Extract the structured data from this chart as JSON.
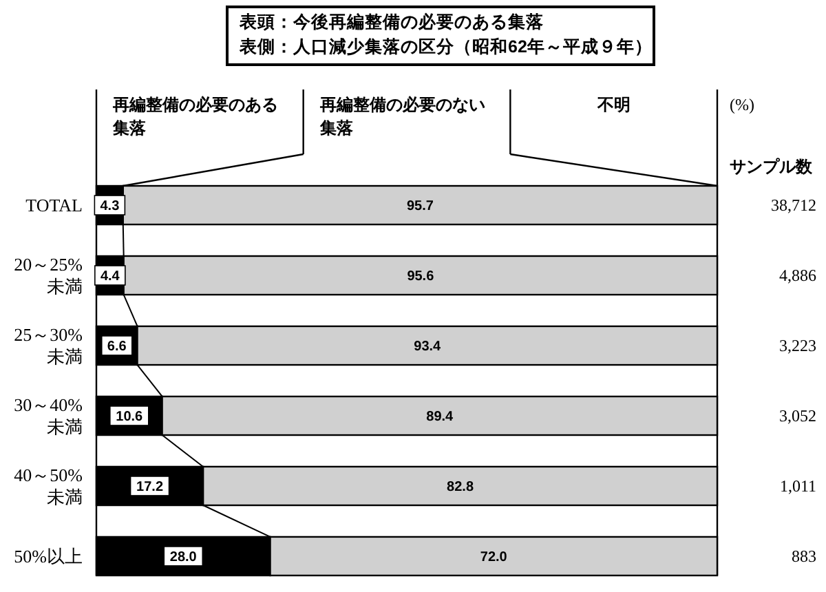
{
  "chart_data": {
    "type": "bar",
    "orientation": "horizontal",
    "stacked": true,
    "title": "表頭：今後再編整備の必要のある集落",
    "subtitle": "表側：人口減少集落の区分（昭和62年～平成９年）",
    "xlabel": "(%)",
    "categories": [
      "TOTAL",
      "20～25%未満",
      "25～30%未満",
      "30～40%未満",
      "40～50%未満",
      "50%以上"
    ],
    "series": [
      {
        "name": "再編整備の必要のある集落",
        "color": "#000000",
        "values": [
          4.3,
          4.4,
          6.6,
          10.6,
          17.2,
          28.0
        ],
        "value_labels": [
          "4.3",
          "4.4",
          "6.6",
          "10.6",
          "17.2",
          "28.0"
        ]
      },
      {
        "name": "再編整備の必要のない集落",
        "color": "#d0d0d0",
        "values": [
          95.7,
          95.6,
          93.4,
          89.4,
          82.8,
          72.0
        ],
        "value_labels": [
          "95.7",
          "95.6",
          "93.4",
          "89.4",
          "82.8",
          "72.0"
        ]
      }
    ],
    "xlim": [
      0,
      100
    ],
    "tick_labels": "y",
    "legend": "top",
    "annotations": [
      "不明",
      "サンプル数",
      "38,712",
      "4,886",
      "3,223",
      "3,052",
      "1,011",
      "883"
    ]
  }
}
